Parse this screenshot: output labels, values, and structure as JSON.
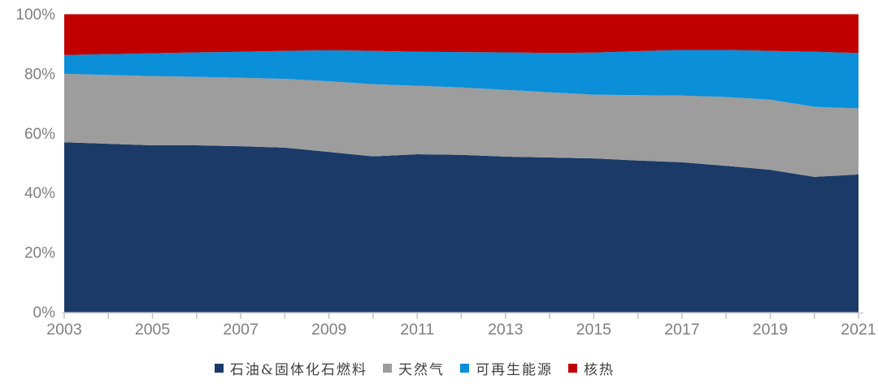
{
  "chart_data": {
    "type": "area",
    "stacked": true,
    "percent_stacked": true,
    "title": "",
    "xlabel": "",
    "ylabel": "",
    "x": [
      2003,
      2004,
      2005,
      2006,
      2007,
      2008,
      2009,
      2010,
      2011,
      2012,
      2013,
      2014,
      2015,
      2016,
      2017,
      2018,
      2019,
      2020,
      2021
    ],
    "series": [
      {
        "id": "oil-solid-fossil",
        "name": "石油&固体化石燃料",
        "color": "#1b3a68",
        "values": [
          57.0,
          56.5,
          56.0,
          56.0,
          55.7,
          55.2,
          53.8,
          52.3,
          53.0,
          52.8,
          52.2,
          51.9,
          51.6,
          50.9,
          50.3,
          49.1,
          47.8,
          45.4,
          46.2
        ]
      },
      {
        "id": "natural-gas",
        "name": "天然气",
        "color": "#9d9d9d",
        "values": [
          23.0,
          23.1,
          23.2,
          23.0,
          23.0,
          23.1,
          23.7,
          24.2,
          23.0,
          22.6,
          22.4,
          21.9,
          21.4,
          21.9,
          22.4,
          23.1,
          23.5,
          23.5,
          22.2
        ]
      },
      {
        "id": "renewables",
        "name": "可再生能源",
        "color": "#0a8fd8",
        "values": [
          6.3,
          7.0,
          7.7,
          8.2,
          8.7,
          9.4,
          10.4,
          11.2,
          11.4,
          11.9,
          12.6,
          13.2,
          14.1,
          14.8,
          15.3,
          15.8,
          16.4,
          18.5,
          18.6
        ]
      },
      {
        "id": "nuclear-heat",
        "name": "核热",
        "color": "#c00000",
        "values": [
          13.7,
          13.4,
          13.1,
          12.8,
          12.6,
          12.3,
          12.1,
          12.3,
          12.6,
          12.7,
          12.8,
          13.0,
          12.9,
          12.4,
          12.0,
          12.0,
          12.3,
          12.6,
          13.0
        ]
      }
    ],
    "ylim": [
      0,
      100
    ],
    "y_tick_values": [
      0,
      20,
      40,
      60,
      80,
      100
    ],
    "y_tick_labels": [
      "0%",
      "20%",
      "40%",
      "60%",
      "80%",
      "100%"
    ],
    "x_tick_label_years": [
      2003,
      2005,
      2007,
      2009,
      2011,
      2013,
      2015,
      2017,
      2019,
      2021
    ],
    "grid": false,
    "legend_position": "bottom"
  },
  "style": {
    "axis_text_color": "#7f7f7f",
    "axis_line_color": "#cfcfcf",
    "tick_color": "#bfbfbf",
    "legend_text_color": "#3f3f3f",
    "background": "#ffffff"
  }
}
